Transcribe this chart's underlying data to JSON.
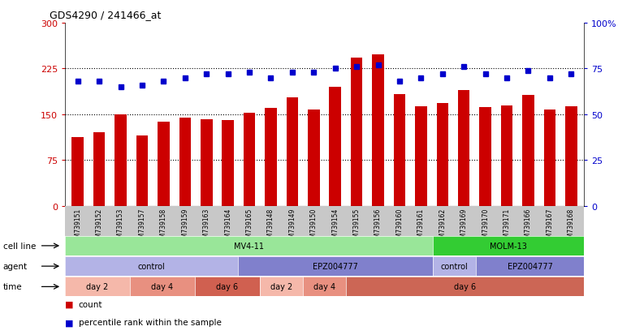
{
  "title": "GDS4290 / 241466_at",
  "samples": [
    "GSM739151",
    "GSM739152",
    "GSM739153",
    "GSM739157",
    "GSM739158",
    "GSM739159",
    "GSM739163",
    "GSM739164",
    "GSM739165",
    "GSM739148",
    "GSM739149",
    "GSM739150",
    "GSM739154",
    "GSM739155",
    "GSM739156",
    "GSM739160",
    "GSM739161",
    "GSM739162",
    "GSM739169",
    "GSM739170",
    "GSM739171",
    "GSM739166",
    "GSM739167",
    "GSM739168"
  ],
  "counts": [
    113,
    120,
    150,
    115,
    138,
    145,
    142,
    140,
    152,
    160,
    178,
    158,
    195,
    243,
    248,
    183,
    163,
    168,
    190,
    162,
    165,
    182,
    158,
    163
  ],
  "percentiles": [
    68,
    68,
    65,
    66,
    68,
    70,
    72,
    72,
    73,
    70,
    73,
    73,
    75,
    76,
    77,
    68,
    70,
    72,
    76,
    72,
    70,
    74,
    70,
    72
  ],
  "bar_color": "#cc0000",
  "dot_color": "#0000cc",
  "ylim_left": [
    0,
    300
  ],
  "ylim_right": [
    0,
    100
  ],
  "yticks_left": [
    0,
    75,
    150,
    225,
    300
  ],
  "yticks_right": [
    0,
    25,
    50,
    75,
    100
  ],
  "yticklabels_right": [
    "0",
    "25",
    "50",
    "75",
    "100%"
  ],
  "grid_lines": [
    75,
    150,
    225
  ],
  "cell_line_groups": [
    {
      "label": "MV4-11",
      "start": 0,
      "end": 17,
      "color": "#99e699"
    },
    {
      "label": "MOLM-13",
      "start": 17,
      "end": 24,
      "color": "#33cc33"
    }
  ],
  "agent_groups": [
    {
      "label": "control",
      "start": 0,
      "end": 8,
      "color": "#b3b3e6"
    },
    {
      "label": "EPZ004777",
      "start": 8,
      "end": 17,
      "color": "#8080cc"
    },
    {
      "label": "control",
      "start": 17,
      "end": 19,
      "color": "#b3b3e6"
    },
    {
      "label": "EPZ004777",
      "start": 19,
      "end": 24,
      "color": "#8080cc"
    }
  ],
  "time_groups": [
    {
      "label": "day 2",
      "start": 0,
      "end": 3,
      "color": "#f5b8aa"
    },
    {
      "label": "day 4",
      "start": 3,
      "end": 6,
      "color": "#e89080"
    },
    {
      "label": "day 6",
      "start": 6,
      "end": 9,
      "color": "#d06050"
    },
    {
      "label": "day 2",
      "start": 9,
      "end": 11,
      "color": "#f5b8aa"
    },
    {
      "label": "day 4",
      "start": 11,
      "end": 13,
      "color": "#e89080"
    },
    {
      "label": "day 6",
      "start": 13,
      "end": 24,
      "color": "#cc6655"
    }
  ],
  "legend_count_color": "#cc0000",
  "legend_pct_color": "#0000cc",
  "bg_color": "#ffffff",
  "tick_label_color_left": "#cc0000",
  "tick_label_color_right": "#0000cc",
  "xtick_bg_color": "#c8c8c8"
}
